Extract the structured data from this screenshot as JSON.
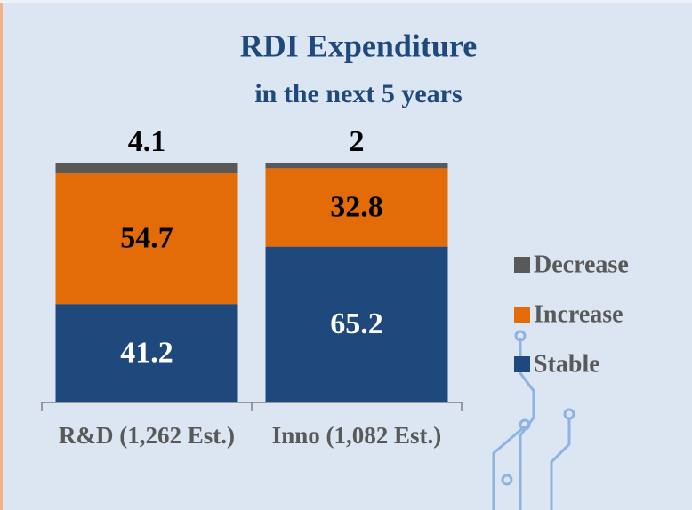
{
  "chart_data": {
    "type": "stacked_bar",
    "title": "RDI Expenditure",
    "subtitle": "in the next 5 years",
    "categories": [
      "R&D (1,262 Est.)",
      "Inno (1,082 Est.)"
    ],
    "series": [
      {
        "name": "Stable",
        "color": "#1f497d",
        "values": [
          41.2,
          65.2
        ]
      },
      {
        "name": "Increase",
        "color": "#e36c09",
        "values": [
          54.7,
          32.8
        ]
      },
      {
        "name": "Decrease",
        "color": "#595959",
        "values": [
          4.1,
          2.0
        ]
      }
    ],
    "ylim": [
      0,
      100
    ],
    "legend": "right"
  }
}
